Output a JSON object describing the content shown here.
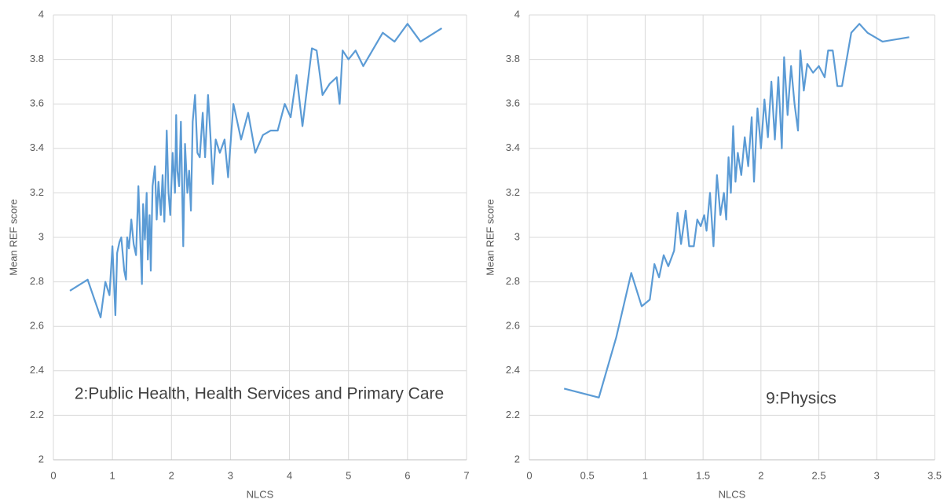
{
  "chart_data": [
    {
      "type": "line",
      "annotation": "2:Public Health, Health Services and Primary Care",
      "x_label": "NLCS",
      "y_label": "Mean REF score",
      "x": [
        0.28,
        0.58,
        0.8,
        0.88,
        0.95,
        1.0,
        1.05,
        1.08,
        1.12,
        1.15,
        1.2,
        1.23,
        1.25,
        1.28,
        1.32,
        1.36,
        1.4,
        1.44,
        1.47,
        1.5,
        1.52,
        1.55,
        1.58,
        1.6,
        1.63,
        1.65,
        1.68,
        1.72,
        1.75,
        1.78,
        1.82,
        1.85,
        1.88,
        1.9,
        1.92,
        1.95,
        1.98,
        2.02,
        2.06,
        2.08,
        2.1,
        2.13,
        2.16,
        2.2,
        2.23,
        2.27,
        2.3,
        2.33,
        2.36,
        2.4,
        2.44,
        2.48,
        2.53,
        2.57,
        2.62,
        2.66,
        2.7,
        2.75,
        2.82,
        2.9,
        2.96,
        3.05,
        3.18,
        3.3,
        3.42,
        3.55,
        3.68,
        3.8,
        3.92,
        4.02,
        4.12,
        4.22,
        4.38,
        4.46,
        4.56,
        4.68,
        4.8,
        4.85,
        4.9,
        5.0,
        5.12,
        5.25,
        5.58,
        5.78,
        6.0,
        6.22,
        6.58
      ],
      "series": [
        {
          "color": "#5b9bd5",
          "values": [
            2.76,
            2.81,
            2.64,
            2.8,
            2.74,
            2.96,
            2.65,
            2.93,
            2.98,
            3.0,
            2.85,
            2.81,
            3.0,
            2.95,
            3.08,
            2.97,
            2.92,
            3.23,
            3.0,
            2.79,
            3.15,
            2.99,
            3.2,
            2.9,
            3.1,
            2.85,
            3.23,
            3.32,
            3.08,
            3.25,
            3.1,
            3.28,
            3.07,
            3.26,
            3.48,
            3.2,
            3.1,
            3.38,
            3.2,
            3.55,
            3.3,
            3.23,
            3.52,
            2.96,
            3.42,
            3.2,
            3.3,
            3.12,
            3.52,
            3.64,
            3.38,
            3.36,
            3.56,
            3.36,
            3.64,
            3.46,
            3.24,
            3.44,
            3.38,
            3.44,
            3.27,
            3.6,
            3.44,
            3.56,
            3.38,
            3.46,
            3.48,
            3.48,
            3.6,
            3.54,
            3.73,
            3.5,
            3.85,
            3.84,
            3.64,
            3.69,
            3.72,
            3.6,
            3.84,
            3.8,
            3.84,
            3.77,
            3.92,
            3.88,
            3.96,
            3.88,
            3.94
          ]
        }
      ],
      "xlim": [
        0,
        7
      ],
      "xticks": [
        0,
        1,
        2,
        3,
        4,
        5,
        6,
        7
      ],
      "ylim": [
        2,
        4
      ],
      "yticks": [
        2,
        2.2,
        2.4,
        2.6,
        2.8,
        3,
        3.2,
        3.4,
        3.6,
        3.8,
        4
      ],
      "grid": true
    },
    {
      "type": "line",
      "annotation": "9:Physics",
      "x_label": "NLCS",
      "y_label": "Mean REF score",
      "x": [
        0.3,
        0.6,
        0.75,
        0.88,
        0.97,
        1.04,
        1.08,
        1.12,
        1.16,
        1.2,
        1.25,
        1.28,
        1.31,
        1.35,
        1.38,
        1.42,
        1.45,
        1.48,
        1.51,
        1.53,
        1.56,
        1.59,
        1.62,
        1.65,
        1.68,
        1.7,
        1.72,
        1.74,
        1.76,
        1.78,
        1.8,
        1.83,
        1.86,
        1.89,
        1.92,
        1.94,
        1.97,
        2.0,
        2.03,
        2.06,
        2.09,
        2.12,
        2.15,
        2.18,
        2.2,
        2.23,
        2.26,
        2.29,
        2.32,
        2.34,
        2.37,
        2.4,
        2.45,
        2.5,
        2.55,
        2.58,
        2.62,
        2.66,
        2.7,
        2.78,
        2.85,
        2.92,
        3.05,
        3.28
      ],
      "series": [
        {
          "color": "#5b9bd5",
          "values": [
            2.32,
            2.28,
            2.55,
            2.84,
            2.69,
            2.72,
            2.88,
            2.82,
            2.92,
            2.87,
            2.94,
            3.11,
            2.97,
            3.12,
            2.96,
            2.96,
            3.08,
            3.05,
            3.1,
            3.03,
            3.2,
            2.96,
            3.28,
            3.1,
            3.2,
            3.08,
            3.36,
            3.2,
            3.5,
            3.25,
            3.38,
            3.28,
            3.45,
            3.32,
            3.54,
            3.25,
            3.58,
            3.4,
            3.62,
            3.45,
            3.7,
            3.44,
            3.72,
            3.4,
            3.81,
            3.55,
            3.77,
            3.6,
            3.48,
            3.84,
            3.66,
            3.78,
            3.74,
            3.77,
            3.72,
            3.84,
            3.84,
            3.68,
            3.68,
            3.92,
            3.96,
            3.92,
            3.88,
            3.9
          ]
        }
      ],
      "xlim": [
        0,
        3.5
      ],
      "xticks": [
        0,
        0.5,
        1,
        1.5,
        2,
        2.5,
        3,
        3.5
      ],
      "ylim": [
        2,
        4
      ],
      "yticks": [
        2,
        2.2,
        2.4,
        2.6,
        2.8,
        3,
        3.2,
        3.4,
        3.6,
        3.8,
        4
      ],
      "grid": true
    }
  ]
}
